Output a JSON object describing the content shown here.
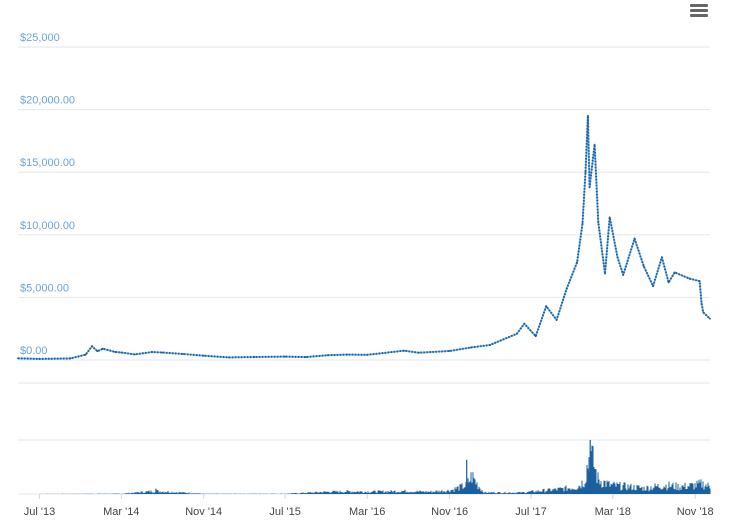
{
  "toolbar": {
    "menu_icon": "hamburger-menu-icon"
  },
  "colors": {
    "price_line": "#1a5f9e",
    "price_light": "#6aaee6",
    "volume": "#1a5f9e",
    "axis_label": "#6aa6d6"
  },
  "chart_data": {
    "type": "line",
    "title": "",
    "xlabel": "",
    "ylabel": "",
    "grid": true,
    "y_ticks": [
      "$0.00",
      "$5,000.00",
      "$10,000.00",
      "$15,000.00",
      "$20,000.00",
      "$25,000"
    ],
    "y_tick_values": [
      0,
      5000,
      10000,
      15000,
      20000,
      25000
    ],
    "ylim": [
      0,
      25000
    ],
    "x_ticks": [
      "Jul '13",
      "Mar '14",
      "Nov '14",
      "Jul '15",
      "Mar '16",
      "Nov '16",
      "Jul '17",
      "Mar '18",
      "Nov '18"
    ],
    "x_tick_dates": [
      "2013-07-01",
      "2014-03-01",
      "2014-11-01",
      "2015-07-01",
      "2016-03-01",
      "2016-11-01",
      "2017-07-01",
      "2018-03-01",
      "2018-11-01"
    ],
    "xlim": [
      "2013-04-28",
      "2018-12-15"
    ],
    "series": [
      {
        "values": [
          [
            "2013-04-28",
            135
          ],
          [
            "2013-07-01",
            90
          ],
          [
            "2013-10-01",
            130
          ],
          [
            "2013-11-15",
            420
          ],
          [
            "2013-12-04",
            1100
          ],
          [
            "2013-12-20",
            700
          ],
          [
            "2014-01-05",
            900
          ],
          [
            "2014-02-10",
            650
          ],
          [
            "2014-03-01",
            600
          ],
          [
            "2014-04-10",
            450
          ],
          [
            "2014-06-01",
            640
          ],
          [
            "2014-07-01",
            600
          ],
          [
            "2014-09-01",
            480
          ],
          [
            "2014-11-01",
            340
          ],
          [
            "2015-01-15",
            210
          ],
          [
            "2015-04-01",
            240
          ],
          [
            "2015-07-01",
            270
          ],
          [
            "2015-09-01",
            230
          ],
          [
            "2015-11-05",
            380
          ],
          [
            "2016-01-01",
            430
          ],
          [
            "2016-03-01",
            415
          ],
          [
            "2016-06-18",
            740
          ],
          [
            "2016-08-01",
            580
          ],
          [
            "2016-11-01",
            720
          ],
          [
            "2017-01-03",
            1000
          ],
          [
            "2017-03-01",
            1200
          ],
          [
            "2017-05-20",
            2100
          ],
          [
            "2017-06-11",
            2900
          ],
          [
            "2017-07-15",
            1900
          ],
          [
            "2017-08-15",
            4300
          ],
          [
            "2017-09-15",
            3200
          ],
          [
            "2017-10-15",
            5700
          ],
          [
            "2017-11-15",
            7800
          ],
          [
            "2017-12-01",
            10900
          ],
          [
            "2017-12-10",
            15000
          ],
          [
            "2017-12-17",
            19500
          ],
          [
            "2017-12-22",
            13800
          ],
          [
            "2018-01-06",
            17200
          ],
          [
            "2018-01-17",
            11000
          ],
          [
            "2018-02-06",
            6900
          ],
          [
            "2018-02-20",
            11400
          ],
          [
            "2018-03-15",
            8200
          ],
          [
            "2018-04-01",
            6800
          ],
          [
            "2018-05-05",
            9700
          ],
          [
            "2018-06-01",
            7500
          ],
          [
            "2018-06-29",
            5900
          ],
          [
            "2018-07-25",
            8200
          ],
          [
            "2018-08-14",
            6200
          ],
          [
            "2018-09-01",
            7000
          ],
          [
            "2018-10-15",
            6500
          ],
          [
            "2018-11-14",
            6300
          ],
          [
            "2018-11-20",
            4500
          ],
          [
            "2018-11-25",
            3800
          ],
          [
            "2018-12-15",
            3300
          ]
        ]
      }
    ],
    "volume_series": {
      "values": [
        [
          "2013-07-01",
          0.2
        ],
        [
          "2014-03-01",
          0.4
        ],
        [
          "2014-06-10",
          4
        ],
        [
          "2014-11-01",
          0.3
        ],
        [
          "2015-07-01",
          0.4
        ],
        [
          "2015-11-05",
          3
        ],
        [
          "2016-01-15",
          3.5
        ],
        [
          "2016-03-01",
          3
        ],
        [
          "2016-06-20",
          4
        ],
        [
          "2016-09-01",
          3
        ],
        [
          "2016-11-01",
          5
        ],
        [
          "2016-12-20",
          12
        ],
        [
          "2017-01-05",
          25
        ],
        [
          "2017-01-20",
          14
        ],
        [
          "2017-02-10",
          2
        ],
        [
          "2017-06-01",
          2
        ],
        [
          "2017-08-15",
          5
        ],
        [
          "2017-10-01",
          7
        ],
        [
          "2017-11-15",
          10
        ],
        [
          "2017-12-05",
          18
        ],
        [
          "2017-12-22",
          58
        ],
        [
          "2018-01-15",
          20
        ],
        [
          "2018-02-20",
          12
        ],
        [
          "2018-04-15",
          10
        ],
        [
          "2018-06-01",
          8
        ],
        [
          "2018-08-01",
          12
        ],
        [
          "2018-09-15",
          10
        ],
        [
          "2018-11-01",
          12
        ],
        [
          "2018-11-20",
          14
        ],
        [
          "2018-12-15",
          10
        ]
      ]
    }
  }
}
